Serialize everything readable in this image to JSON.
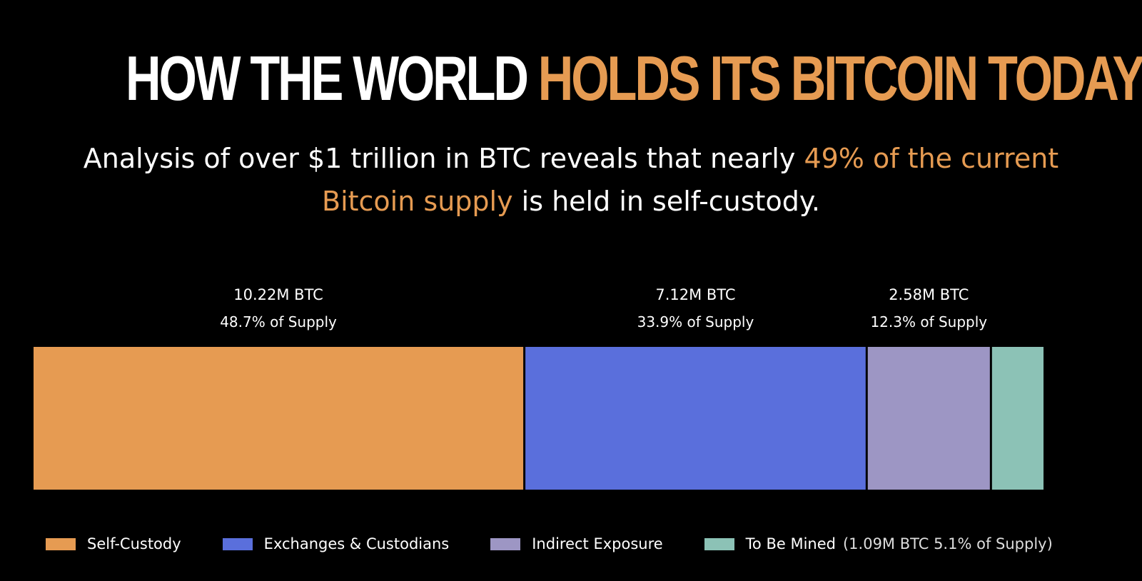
{
  "headline": {
    "part1": "HOW THE WORLD",
    "part2": "HOLDS ITS BITCOIN TODAY"
  },
  "subtitle": {
    "part1": "Analysis of over $1 trillion in BTC reveals that nearly ",
    "highlight": "49% of the current Bitcoin supply",
    "part2": " is held in self-custody."
  },
  "colors": {
    "background": "#000000",
    "accent": "#e69b52",
    "text": "#ffffff"
  },
  "chart_data": {
    "type": "bar",
    "orientation": "horizontal-stacked",
    "units": "BTC",
    "series": [
      {
        "name": "Self-Custody",
        "value_m": 10.22,
        "percent": 48.7,
        "value_label": "10.22M BTC",
        "percent_label": "48.7% of Supply",
        "color": "#e69b52"
      },
      {
        "name": "Exchanges & Custodians",
        "value_m": 7.12,
        "percent": 33.9,
        "value_label": "7.12M BTC",
        "percent_label": "33.9% of Supply",
        "color": "#5a6fdc"
      },
      {
        "name": "Indirect Exposure",
        "value_m": 2.58,
        "percent": 12.3,
        "value_label": "2.58M BTC",
        "percent_label": "12.3% of Supply",
        "color": "#9d96c4"
      },
      {
        "name": "To Be Mined",
        "value_m": 1.09,
        "percent": 5.1,
        "value_label": "",
        "percent_label": "",
        "color": "#8cc2b6",
        "note": "(1.09M BTC 5.1% of Supply)"
      }
    ],
    "legend_placement": "bottom",
    "grid": false
  }
}
